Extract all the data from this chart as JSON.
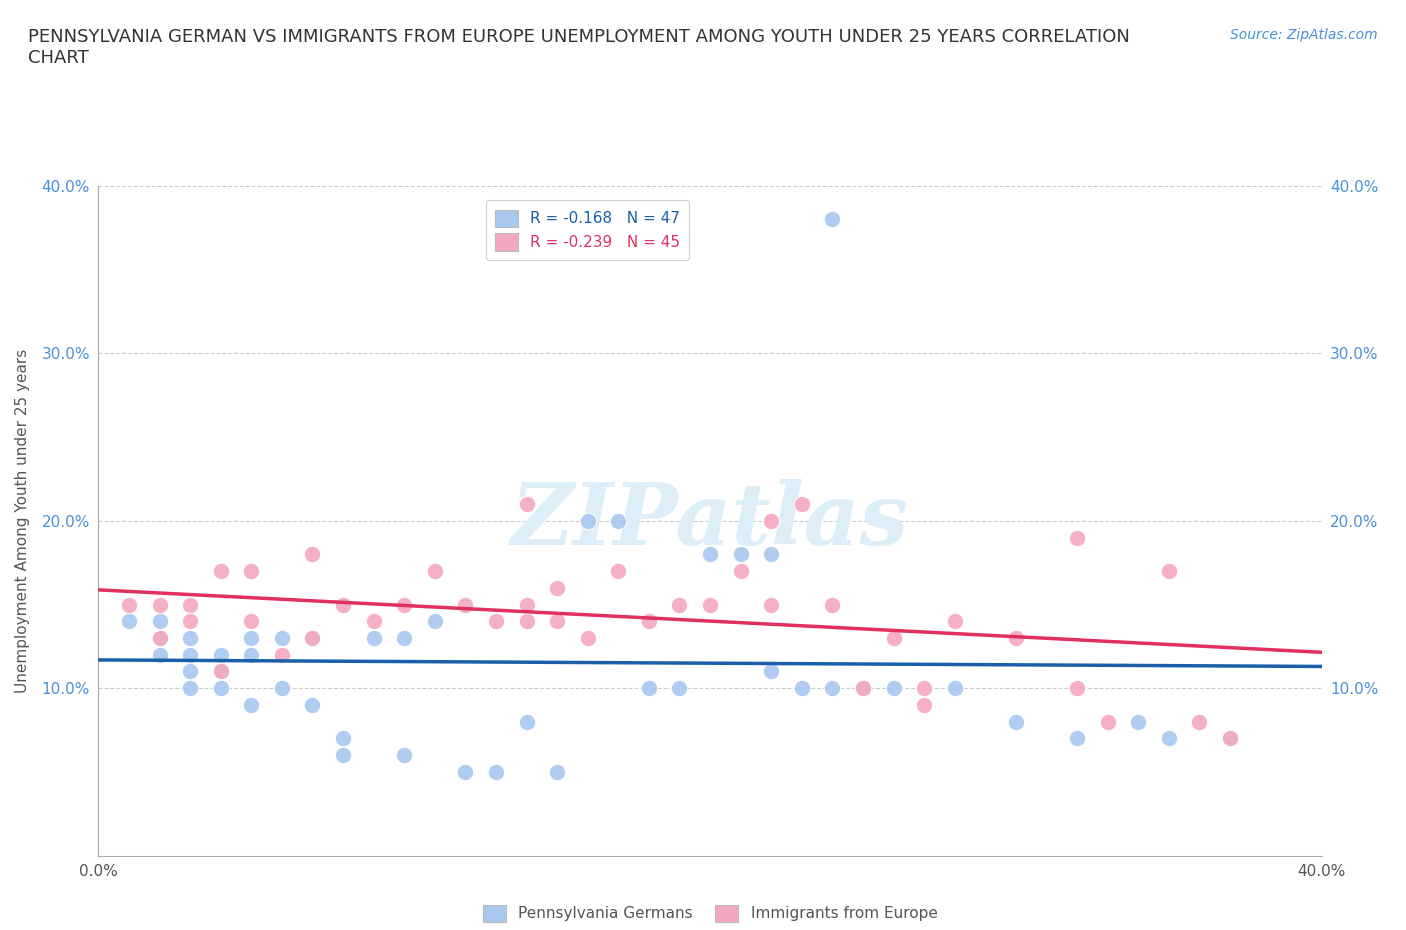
{
  "title": "PENNSYLVANIA GERMAN VS IMMIGRANTS FROM EUROPE UNEMPLOYMENT AMONG YOUTH UNDER 25 YEARS CORRELATION\nCHART",
  "source_text": "Source: ZipAtlas.com",
  "ylabel": "Unemployment Among Youth under 25 years",
  "xlim": [
    0.0,
    0.4
  ],
  "ylim": [
    0.0,
    0.4
  ],
  "xticks": [
    0.0,
    0.1,
    0.2,
    0.3,
    0.4
  ],
  "yticks": [
    0.1,
    0.2,
    0.3,
    0.4
  ],
  "xticklabels": [
    "0.0%",
    "",
    "",
    "",
    "40.0%"
  ],
  "yticklabels": [
    "10.0%",
    "20.0%",
    "30.0%",
    "40.0%"
  ],
  "grid_color": "#cccccc",
  "background_color": "#ffffff",
  "blue_scatter_x": [
    0.01,
    0.02,
    0.02,
    0.02,
    0.03,
    0.03,
    0.03,
    0.03,
    0.04,
    0.04,
    0.04,
    0.05,
    0.05,
    0.05,
    0.06,
    0.06,
    0.07,
    0.07,
    0.08,
    0.08,
    0.09,
    0.1,
    0.1,
    0.11,
    0.12,
    0.13,
    0.14,
    0.15,
    0.16,
    0.17,
    0.18,
    0.19,
    0.2,
    0.21,
    0.22,
    0.22,
    0.23,
    0.24,
    0.25,
    0.26,
    0.28,
    0.3,
    0.32,
    0.34,
    0.35,
    0.37,
    0.24
  ],
  "blue_scatter_y": [
    0.14,
    0.13,
    0.12,
    0.14,
    0.13,
    0.12,
    0.11,
    0.1,
    0.12,
    0.11,
    0.1,
    0.13,
    0.12,
    0.09,
    0.13,
    0.1,
    0.13,
    0.09,
    0.07,
    0.06,
    0.13,
    0.13,
    0.06,
    0.14,
    0.05,
    0.05,
    0.08,
    0.05,
    0.2,
    0.2,
    0.1,
    0.1,
    0.18,
    0.18,
    0.11,
    0.18,
    0.1,
    0.1,
    0.1,
    0.1,
    0.1,
    0.08,
    0.07,
    0.08,
    0.07,
    0.07,
    0.38
  ],
  "pink_scatter_x": [
    0.01,
    0.02,
    0.02,
    0.03,
    0.03,
    0.04,
    0.04,
    0.05,
    0.05,
    0.06,
    0.07,
    0.07,
    0.08,
    0.09,
    0.1,
    0.11,
    0.12,
    0.13,
    0.14,
    0.14,
    0.15,
    0.15,
    0.16,
    0.17,
    0.18,
    0.19,
    0.2,
    0.21,
    0.22,
    0.23,
    0.24,
    0.25,
    0.26,
    0.27,
    0.28,
    0.3,
    0.32,
    0.33,
    0.35,
    0.36,
    0.37,
    0.22,
    0.14,
    0.27,
    0.32
  ],
  "pink_scatter_y": [
    0.15,
    0.15,
    0.13,
    0.15,
    0.14,
    0.17,
    0.11,
    0.17,
    0.14,
    0.12,
    0.13,
    0.18,
    0.15,
    0.14,
    0.15,
    0.17,
    0.15,
    0.14,
    0.14,
    0.15,
    0.16,
    0.14,
    0.13,
    0.17,
    0.14,
    0.15,
    0.15,
    0.17,
    0.15,
    0.21,
    0.15,
    0.1,
    0.13,
    0.1,
    0.14,
    0.13,
    0.1,
    0.08,
    0.17,
    0.08,
    0.07,
    0.2,
    0.21,
    0.09,
    0.19
  ],
  "blue_color": "#a8c8f0",
  "pink_color": "#f4a8c0",
  "blue_line_color": "#1a5fa8",
  "pink_line_color": "#e03060",
  "R_blue": -0.168,
  "N_blue": 47,
  "R_pink": -0.239,
  "N_pink": 45,
  "legend1_label": "Pennsylvania Germans",
  "legend2_label": "Immigrants from Europe",
  "watermark": "ZIPatlas",
  "watermark_color": "#ddeef8",
  "title_fontsize": 13,
  "axis_label_fontsize": 11,
  "tick_fontsize": 11,
  "legend_fontsize": 11,
  "source_fontsize": 10
}
